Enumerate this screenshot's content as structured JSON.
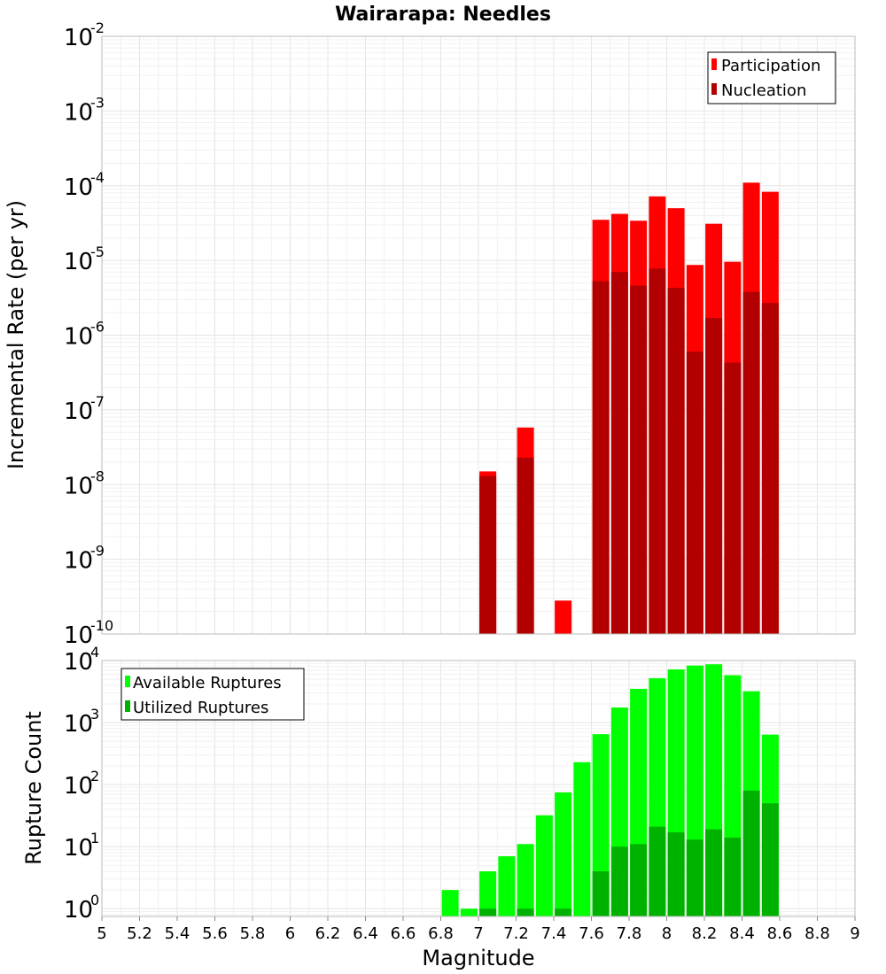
{
  "chart_data": [
    {
      "type": "bar",
      "title": "Wairarapa: Needles",
      "ylabel": "Incremental Rate (per yr)",
      "xlabel": "",
      "xlim": [
        5,
        9
      ],
      "ylim": [
        1e-10,
        0.01
      ],
      "yscale": "log",
      "grid": true,
      "legend_position": "top-right",
      "yticks": [
        {
          "base": "10",
          "exp": "-2",
          "value": 0.01
        },
        {
          "base": "10",
          "exp": "-3",
          "value": 0.001
        },
        {
          "base": "10",
          "exp": "-4",
          "value": 0.0001
        },
        {
          "base": "10",
          "exp": "-5",
          "value": 1e-05
        },
        {
          "base": "10",
          "exp": "-6",
          "value": 1e-06
        },
        {
          "base": "10",
          "exp": "-7",
          "value": 1e-07
        },
        {
          "base": "10",
          "exp": "-8",
          "value": 1e-08
        },
        {
          "base": "10",
          "exp": "-9",
          "value": 1e-09
        },
        {
          "base": "10",
          "exp": "-10",
          "value": 1e-10
        }
      ],
      "x": [
        7.05,
        7.25,
        7.45,
        7.65,
        7.75,
        7.85,
        7.95,
        8.05,
        8.15,
        8.25,
        8.35,
        8.45,
        8.55
      ],
      "series": [
        {
          "name": "Participation",
          "color": "#ff0000",
          "values": [
            1.5e-08,
            5.8e-08,
            2.8e-10,
            3.5e-05,
            4.2e-05,
            3.4e-05,
            7.2e-05,
            5e-05,
            8.7e-06,
            3.1e-05,
            9.6e-06,
            0.00011,
            8.3e-05
          ]
        },
        {
          "name": "Nucleation",
          "color": "#b20000",
          "values": [
            1.3e-08,
            2.3e-08,
            null,
            5.3e-06,
            7e-06,
            4.6e-06,
            7.8e-06,
            4.3e-06,
            6e-07,
            1.7e-06,
            4.3e-07,
            3.8e-06,
            2.7e-06
          ]
        }
      ]
    },
    {
      "type": "bar",
      "title": "",
      "ylabel": "Rupture Count",
      "xlabel": "Magnitude",
      "xlim": [
        5,
        9
      ],
      "ylim": [
        0.75,
        10000
      ],
      "yscale": "log",
      "grid": true,
      "legend_position": "top-left",
      "yticks": [
        {
          "base": "10",
          "exp": "4",
          "value": 10000
        },
        {
          "base": "10",
          "exp": "3",
          "value": 1000
        },
        {
          "base": "10",
          "exp": "2",
          "value": 100
        },
        {
          "base": "10",
          "exp": "1",
          "value": 10
        },
        {
          "base": "10",
          "exp": "0",
          "value": 1
        }
      ],
      "xticks": [
        "5",
        "5.2",
        "5.4",
        "5.6",
        "5.8",
        "6",
        "6.2",
        "6.4",
        "6.6",
        "6.8",
        "7",
        "7.2",
        "7.4",
        "7.6",
        "7.8",
        "8",
        "8.2",
        "8.4",
        "8.6",
        "8.8",
        "9"
      ],
      "x": [
        6.85,
        6.95,
        7.05,
        7.15,
        7.25,
        7.35,
        7.45,
        7.55,
        7.65,
        7.75,
        7.85,
        7.95,
        8.05,
        8.15,
        8.25,
        8.35,
        8.45,
        8.55
      ],
      "series": [
        {
          "name": "Available Ruptures",
          "color": "#00ff00",
          "values": [
            2,
            1,
            4,
            7,
            11,
            32,
            75,
            230,
            650,
            1750,
            3500,
            5200,
            7200,
            8300,
            8700,
            5800,
            3200,
            640
          ]
        },
        {
          "name": "Utilized Ruptures",
          "color": "#00b200",
          "values": [
            null,
            null,
            1,
            null,
            1,
            null,
            1,
            null,
            4,
            10,
            11,
            21,
            17,
            13,
            19,
            14,
            80,
            50
          ]
        }
      ]
    }
  ]
}
